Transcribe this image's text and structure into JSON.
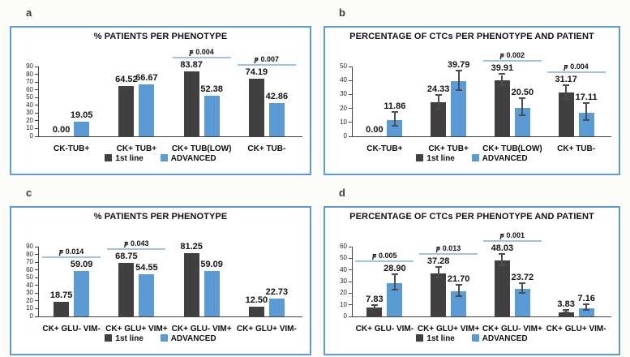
{
  "figure": {
    "description": "Four bar chart panels comparing 1st line vs ADVANCED groups by CTC phenotype",
    "accent_colors": {
      "series_dark": "#404040",
      "series_blue": "#5b9bd5",
      "panel_border": "#5b9bd5",
      "p_underline": "#9dc3e6",
      "axis": "#404040"
    }
  },
  "chart_data": [
    {
      "panel": "a",
      "type": "bar",
      "title": "% PATIENTS PER PHENOTYPE",
      "categories": [
        "CK-TUB+",
        "CK+ TUB+",
        "CK+ TUB(LOW)",
        "CK+ TUB-"
      ],
      "series": [
        {
          "name": "1st line",
          "color": "#404040",
          "values": [
            0.0,
            64.52,
            83.87,
            74.19
          ],
          "errors": null
        },
        {
          "name": "ADVANCED",
          "color": "#5b9bd5",
          "values": [
            19.05,
            66.67,
            52.38,
            42.86
          ],
          "errors": null
        }
      ],
      "ylim": [
        0,
        90
      ],
      "ytick_step": 10,
      "grid": false,
      "legend_position": "bottom",
      "value_label_decimals": 2,
      "p_annotations": [
        {
          "group_index": 2,
          "text": "p = 0.004"
        },
        {
          "group_index": 3,
          "text": "p = 0.007"
        }
      ]
    },
    {
      "panel": "b",
      "type": "bar",
      "title": "PERCENTAGE OF CTCs PER PHENOTYPE AND PATIENT",
      "categories": [
        "CK-TUB+",
        "CK+ TUB+",
        "CK+ TUB(LOW)",
        "CK+ TUB-"
      ],
      "series": [
        {
          "name": "1st line",
          "color": "#404040",
          "values": [
            0.0,
            24.33,
            39.91,
            31.17
          ],
          "errors": [
            0,
            5,
            4,
            5
          ]
        },
        {
          "name": "ADVANCED",
          "color": "#5b9bd5",
          "values": [
            11.86,
            39.79,
            20.5,
            17.11
          ],
          "errors": [
            5,
            7,
            6,
            6
          ]
        }
      ],
      "ylim": [
        0,
        50
      ],
      "ytick_step": 10,
      "grid": false,
      "legend_position": "bottom",
      "value_label_decimals": 2,
      "p_annotations": [
        {
          "group_index": 2,
          "text": "p = 0.002"
        },
        {
          "group_index": 3,
          "text": "p = 0.004"
        }
      ]
    },
    {
      "panel": "c",
      "type": "bar",
      "title": "% PATIENTS PER PHENOTYPE",
      "categories": [
        "CK+ GLU- VIM-",
        "CK+ GLU+ VIM+",
        "CK+ GLU- VIM+",
        "CK+ GLU+ VIM-"
      ],
      "series": [
        {
          "name": "1st line",
          "color": "#404040",
          "values": [
            18.75,
            68.75,
            81.25,
            12.5
          ],
          "errors": null
        },
        {
          "name": "ADVANCED",
          "color": "#5b9bd5",
          "values": [
            59.09,
            54.55,
            59.09,
            22.73
          ],
          "errors": null
        }
      ],
      "ylim": [
        0,
        90
      ],
      "ytick_step": 10,
      "grid": false,
      "legend_position": "bottom",
      "value_label_decimals": 2,
      "p_annotations": [
        {
          "group_index": 0,
          "text": "p = 0.014"
        },
        {
          "group_index": 1,
          "text": "p = 0.043"
        }
      ]
    },
    {
      "panel": "d",
      "type": "bar",
      "title": "PERCENTAGE OF CTCs PER PHENOTYPE AND PATIENT",
      "categories": [
        "CK+ GLU- VIM-",
        "CK+ GLU+ VIM+",
        "CK+ GLU- VIM+",
        "CK+ GLU+ VIM-"
      ],
      "series": [
        {
          "name": "1st line",
          "color": "#404040",
          "values": [
            7.83,
            37.28,
            48.03,
            3.83
          ],
          "errors": [
            1.5,
            4.5,
            5,
            1
          ]
        },
        {
          "name": "ADVANCED",
          "color": "#5b9bd5",
          "values": [
            28.9,
            21.7,
            23.72,
            7.16
          ],
          "errors": [
            6.5,
            5,
            4.5,
            2.5
          ]
        }
      ],
      "ylim": [
        0,
        60
      ],
      "ytick_step": 10,
      "grid": false,
      "legend_position": "bottom",
      "value_label_decimals": 2,
      "p_annotations": [
        {
          "group_index": 0,
          "text": "p = 0.005"
        },
        {
          "group_index": 1,
          "text": "p = 0.013"
        },
        {
          "group_index": 2,
          "text": "p = 0.001"
        }
      ]
    }
  ]
}
